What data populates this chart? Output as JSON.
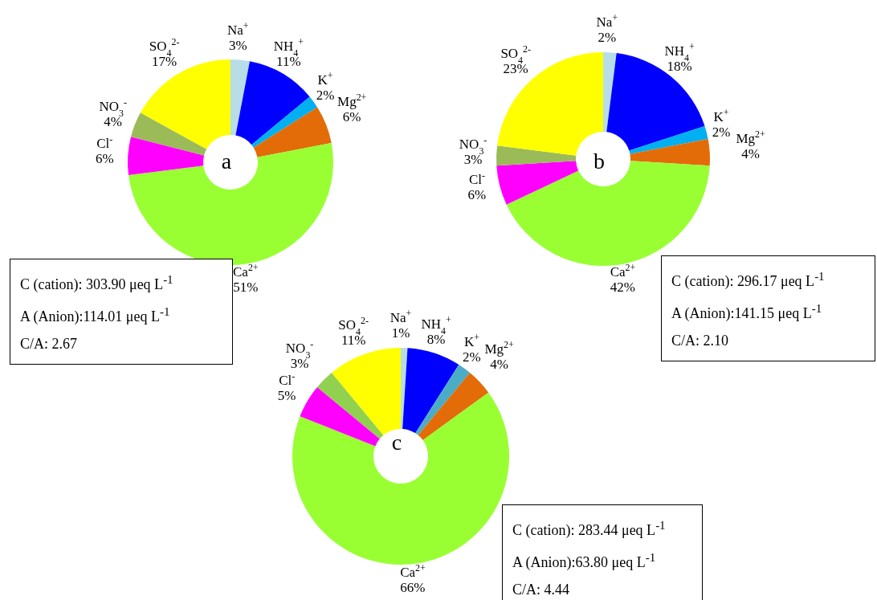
{
  "chart_data": [
    {
      "type": "donut",
      "title": "a",
      "categories": [
        "Na$^{+}$",
        "NH$_{4}$$^{+}$",
        "K$^{+}$",
        "Mg$^{2+}$",
        "Ca$^{2+}$",
        "Cl$^{-}$",
        "NO$_{3}$$^{-}$",
        "SO$_{4}$$^{2-}$"
      ],
      "values": [
        3,
        11,
        2,
        6,
        51,
        6,
        4,
        17
      ],
      "value_labels": [
        "3%",
        "11%",
        "2%",
        "6%",
        "51%",
        "6%",
        "4%",
        "17%"
      ],
      "colors": [
        "#b7dde8",
        "#0000ff",
        "#00b0f0",
        "#e36c09",
        "#99ff33",
        "#ff00ff",
        "#9bbb59",
        "#ffff00"
      ],
      "annotations": [
        "C (cation): 303.90 μeq L$^{-1}$",
        "A (Anion):114.01 μeq L$^{-1}$",
        "C/A: 2.67"
      ]
    },
    {
      "type": "donut",
      "title": "b",
      "categories": [
        "Na$^{+}$",
        "NH$_{4}$$^{+}$",
        "K$^{+}$",
        "Mg$^{2+}$",
        "Ca$^{2+}$",
        "Cl$^{-}$",
        "NO$_{3}$$^{-}$",
        "SO$_{4}$$^{2-}$"
      ],
      "values": [
        2,
        18,
        2,
        4,
        42,
        6,
        3,
        23
      ],
      "value_labels": [
        "2%",
        "18%",
        "2%",
        "4%",
        "42%",
        "6%",
        "3%",
        "23%"
      ],
      "colors": [
        "#b7dde8",
        "#0000ff",
        "#00b0f0",
        "#e36c09",
        "#99ff33",
        "#ff00ff",
        "#9bbb59",
        "#ffff00"
      ],
      "annotations": [
        "C (cation): 296.17 μeq L$^{-1}$",
        "A (Anion):141.15 μeq L$^{-1}$",
        "C/A: 2.10"
      ]
    },
    {
      "type": "donut",
      "title": "c",
      "categories": [
        "Na$^{+}$",
        "NH$_{4}$$^{+}$",
        "K$^{+}$",
        "Mg$^{2+}$",
        "Ca$^{2+}$",
        "Cl$^{-}$",
        "NO$_{3}$$^{-}$",
        "SO$_{4}$$^{2-}$"
      ],
      "values": [
        1,
        8,
        2,
        4,
        66,
        5,
        3,
        11
      ],
      "value_labels": [
        "1%",
        "8%",
        "2%",
        "4%",
        "66%",
        "5%",
        "3%",
        "11%"
      ],
      "colors": [
        "#b7dde8",
        "#0000ff",
        "#4bacc6",
        "#e36c09",
        "#99ff33",
        "#ff00ff",
        "#92d050",
        "#ffff00"
      ],
      "annotations": [
        "C (cation): 283.44 μeq L$^{-1}$",
        "A (Anion):63.80 μeq L$^{-1}$",
        "C/A: 4.44"
      ]
    }
  ]
}
